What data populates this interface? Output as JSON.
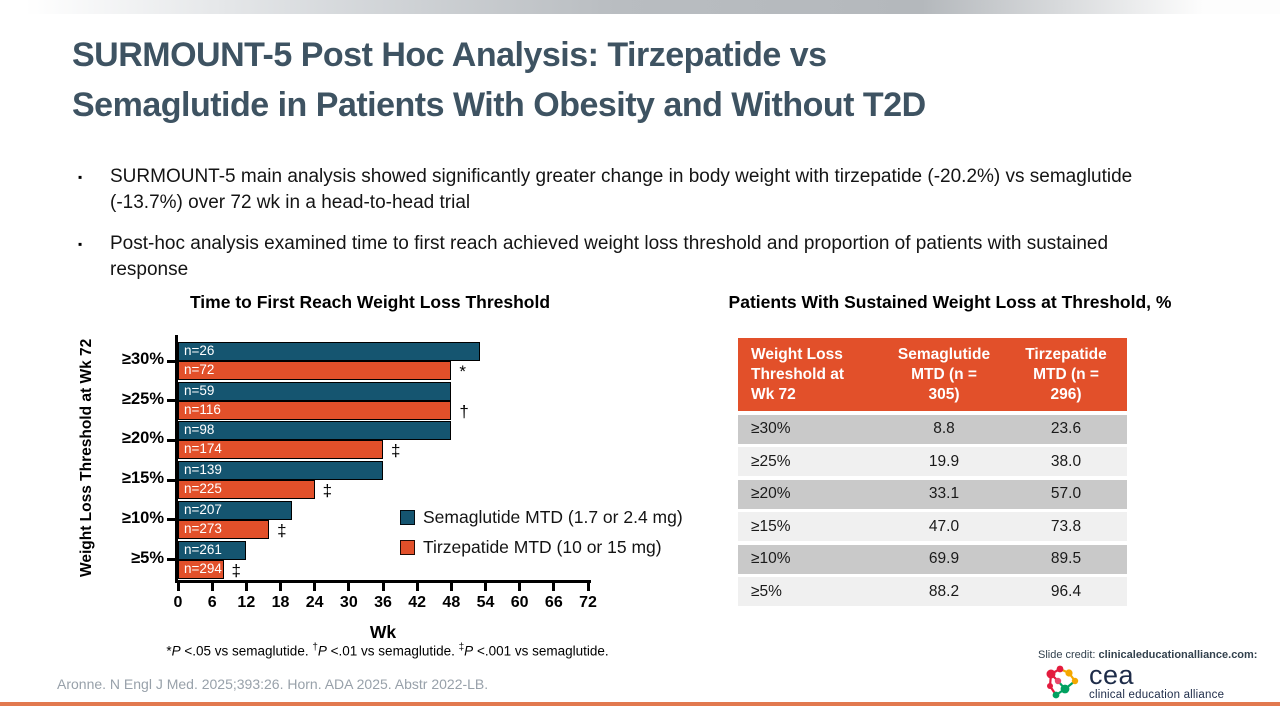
{
  "slide": {
    "title_line1": "SURMOUNT-5 Post Hoc Analysis: Tirzepatide vs",
    "title_line2": "Semaglutide in Patients With Obesity and Without T2D",
    "bullets": [
      "SURMOUNT-5 main analysis showed significantly greater change in body weight with tirzepatide (-20.2%) vs semaglutide (-13.7%) over 72 wk in a head-to-head trial",
      "Post-hoc analysis examined time to first reach achieved weight loss threshold and proportion of patients with sustained response"
    ],
    "citation": "Aronne. N Engl J Med. 2025;393:26. Horn. ADA 2025. Abstr 2022-LB.",
    "credit_prefix": "Slide credit: ",
    "credit_domain": "clinicaleducationalliance.com:",
    "logo_abbr": "cea",
    "logo_name": "clinical education alliance"
  },
  "colors": {
    "semaglutide": "#155570",
    "tirzepatide": "#e2502a",
    "title": "#3e5362",
    "accent_line": "#e2794f",
    "table_row_dark": "#c9c9c9",
    "table_row_light": "#f0f0f0"
  },
  "chart_data": [
    {
      "type": "bar",
      "orientation": "horizontal",
      "title": "Time to First Reach Weight Loss Threshold",
      "xlabel": "Wk",
      "ylabel": "Weight Loss Threshold at Wk 72",
      "xlim": [
        0,
        72
      ],
      "xticks": [
        0,
        6,
        12,
        18,
        24,
        30,
        36,
        42,
        48,
        54,
        60,
        66,
        72
      ],
      "categories": [
        "≥30%",
        "≥25%",
        "≥20%",
        "≥15%",
        "≥10%",
        "≥5%"
      ],
      "series": [
        {
          "name": "Semaglutide MTD (1.7 or 2.4 mg)",
          "color": "#155570",
          "values": [
            53,
            48,
            48,
            36,
            20,
            12
          ],
          "n_labels": [
            "n=26",
            "n=59",
            "n=98",
            "n=139",
            "n=207",
            "n=261"
          ]
        },
        {
          "name": "Tirzepatide MTD (10 or 15 mg)",
          "color": "#e2502a",
          "values": [
            48,
            48,
            36,
            24,
            16,
            8
          ],
          "n_labels": [
            "n=72",
            "n=116",
            "n=174",
            "n=225",
            "n=273",
            "n=294"
          ],
          "sig_markers": [
            "*",
            "†",
            "‡",
            "‡",
            "‡",
            "‡"
          ]
        }
      ],
      "footnote": "*P <.05 vs semaglutide. †P <.01 vs semaglutide. ‡P <.001 vs semaglutide.",
      "legend_position": "right-middle",
      "grid": false
    },
    {
      "type": "table",
      "title": "Patients With Sustained Weight Loss at Threshold, %",
      "headers": [
        "Weight Loss Threshold at Wk 72",
        "Semaglutide MTD (n = 305)",
        "Tirzepatide MTD (n = 296)"
      ],
      "rows": [
        [
          "≥30%",
          "8.8",
          "23.6"
        ],
        [
          "≥25%",
          "19.9",
          "38.0"
        ],
        [
          "≥20%",
          "33.1",
          "57.0"
        ],
        [
          "≥15%",
          "47.0",
          "73.8"
        ],
        [
          "≥10%",
          "69.9",
          "89.5"
        ],
        [
          "≥5%",
          "88.2",
          "96.4"
        ]
      ]
    }
  ]
}
